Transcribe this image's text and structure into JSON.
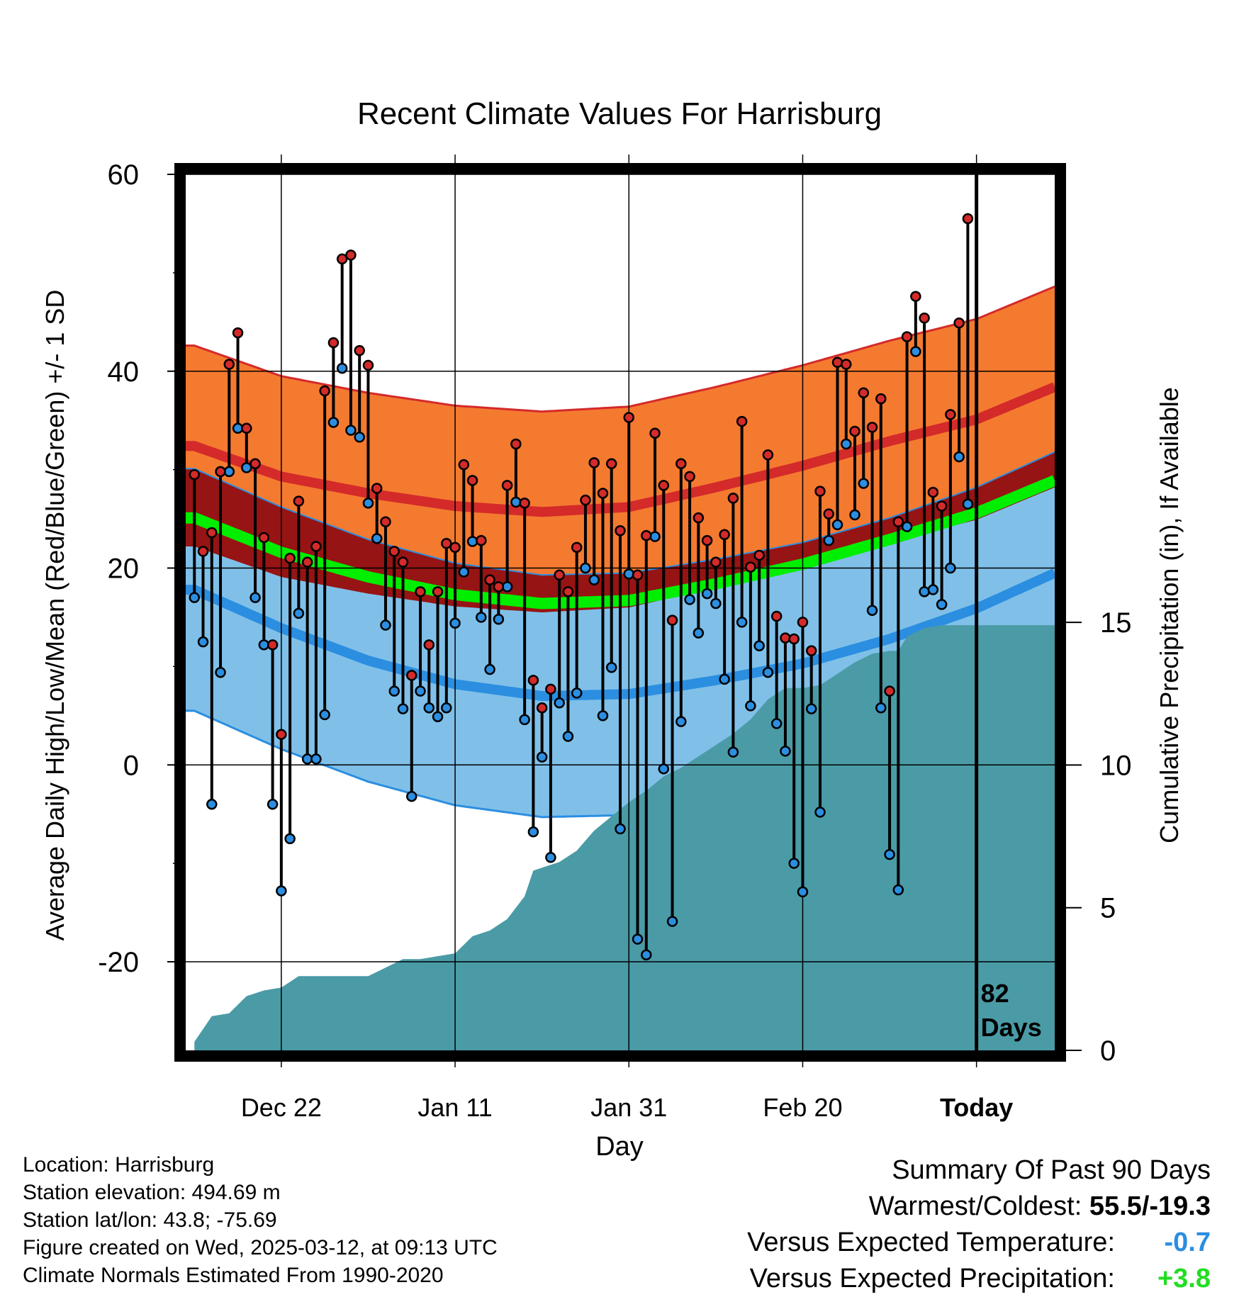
{
  "chart_data": {
    "type": "line",
    "title": "Recent Climate Values For Harrisburg",
    "xlabel": "Day",
    "ylabel": "Average Daily High/Low/Mean (Red/Blue/Green) +/- 1 SD",
    "y2label": "Cumulative Precipitation (in), If Available",
    "ylim": [
      -29,
      60
    ],
    "y2lim": [
      0,
      30.7
    ],
    "xlim": [
      -91,
      9
    ],
    "yticks": [
      -20,
      0,
      20,
      40,
      60
    ],
    "y2ticks": [
      0,
      5,
      10,
      15
    ],
    "xticks": [
      {
        "x": -80,
        "label": "Dec 22"
      },
      {
        "x": -60,
        "label": "Jan 11"
      },
      {
        "x": -40,
        "label": "Jan 31"
      },
      {
        "x": -20,
        "label": "Feb 20"
      },
      {
        "x": 0,
        "label": "Today"
      }
    ],
    "today_x": 0,
    "today_label": "82\nDays",
    "normals": {
      "x": [
        -90,
        -80,
        -70,
        -60,
        -50,
        -40,
        -30,
        -20,
        -10,
        0,
        9
      ],
      "high_mean": [
        32.4,
        29.3,
        27.6,
        26.3,
        25.7,
        26.2,
        28.2,
        30.4,
        32.9,
        35.1,
        38.4
      ],
      "high_sd": 10.2,
      "low_mean": [
        17.8,
        13.9,
        10.6,
        8.2,
        7.0,
        7.2,
        8.6,
        10.3,
        12.8,
        15.9,
        19.5
      ],
      "low_sd": 12.3,
      "mean_mean": [
        25.1,
        21.6,
        19.1,
        17.3,
        16.4,
        16.7,
        18.4,
        20.4,
        22.9,
        25.6,
        28.9
      ]
    },
    "series": [
      {
        "name": "High",
        "color": "#d42a2a",
        "x": [
          -90,
          -89,
          -88,
          -87,
          -86,
          -85,
          -84,
          -83,
          -82,
          -81,
          -80,
          -79,
          -78,
          -77,
          -76,
          -75,
          -74,
          -73,
          -72,
          -71,
          -70,
          -69,
          -68,
          -67,
          -66,
          -65,
          -64,
          -63,
          -62,
          -61,
          -60,
          -59,
          -58,
          -57,
          -56,
          -55,
          -54,
          -53,
          -52,
          -51,
          -50,
          -49,
          -48,
          -47,
          -46,
          -45,
          -44,
          -43,
          -42,
          -41,
          -40,
          -39,
          -38,
          -37,
          -36,
          -35,
          -34,
          -33,
          -32,
          -31,
          -30,
          -29,
          -28,
          -27,
          -26,
          -25,
          -24,
          -23,
          -22,
          -21,
          -20,
          -19,
          -18,
          -17,
          -16,
          -15,
          -14,
          -13,
          -12,
          -11,
          -10,
          -9,
          -8,
          -7,
          -6,
          -5,
          -4,
          -3,
          -2,
          -1
        ],
        "values": [
          29.5,
          21.7,
          23.6,
          29.8,
          40.7,
          43.9,
          34.2,
          30.6,
          23.1,
          12.2,
          3.1,
          21.0,
          26.8,
          20.6,
          22.2,
          38.0,
          42.9,
          51.4,
          51.8,
          42.1,
          40.6,
          28.1,
          24.7,
          21.7,
          20.6,
          9.1,
          17.6,
          12.2,
          17.6,
          22.5,
          22.1,
          30.5,
          28.9,
          22.8,
          18.8,
          18.1,
          28.4,
          32.6,
          26.6,
          8.6,
          5.8,
          7.7,
          19.3,
          17.6,
          22.1,
          26.9,
          30.7,
          27.6,
          30.6,
          23.8,
          35.3,
          19.3,
          23.3,
          33.7,
          28.4,
          14.7,
          30.6,
          29.3,
          25.1,
          22.8,
          20.6,
          23.4,
          27.1,
          34.9,
          20.1,
          21.3,
          31.5,
          15.1,
          12.9,
          12.8,
          14.5,
          11.6,
          27.8,
          25.5,
          40.9,
          40.7,
          33.9,
          37.8,
          34.3,
          37.2,
          7.5,
          24.7,
          43.5,
          47.6,
          45.4,
          27.7,
          26.3,
          35.6,
          44.9,
          55.5
        ]
      },
      {
        "name": "Low",
        "color": "#2b8ee0",
        "x": [
          -90,
          -89,
          -88,
          -87,
          -86,
          -85,
          -84,
          -83,
          -82,
          -81,
          -80,
          -79,
          -78,
          -77,
          -76,
          -75,
          -74,
          -73,
          -72,
          -71,
          -70,
          -69,
          -68,
          -67,
          -66,
          -65,
          -64,
          -63,
          -62,
          -61,
          -60,
          -59,
          -58,
          -57,
          -56,
          -55,
          -54,
          -53,
          -52,
          -51,
          -50,
          -49,
          -48,
          -47,
          -46,
          -45,
          -44,
          -43,
          -42,
          -41,
          -40,
          -39,
          -38,
          -37,
          -36,
          -35,
          -34,
          -33,
          -32,
          -31,
          -30,
          -29,
          -28,
          -27,
          -26,
          -25,
          -24,
          -23,
          -22,
          -21,
          -20,
          -19,
          -18,
          -17,
          -16,
          -15,
          -14,
          -13,
          -12,
          -11,
          -10,
          -9,
          -8,
          -7,
          -6,
          -5,
          -4,
          -3,
          -2,
          -1
        ],
        "values": [
          17.0,
          12.5,
          -4.0,
          9.4,
          29.8,
          34.2,
          30.2,
          17.0,
          12.2,
          -4.0,
          -12.8,
          -7.5,
          15.4,
          0.6,
          0.6,
          5.1,
          34.8,
          40.3,
          34.0,
          33.3,
          26.6,
          23.0,
          14.2,
          7.5,
          5.7,
          -3.2,
          7.5,
          5.8,
          4.9,
          5.8,
          14.4,
          19.6,
          22.7,
          15.0,
          9.7,
          14.8,
          18.1,
          26.7,
          4.6,
          -6.8,
          0.8,
          -9.4,
          6.3,
          2.9,
          7.3,
          20.0,
          18.8,
          5.0,
          9.9,
          -6.5,
          19.4,
          -17.7,
          -19.3,
          23.2,
          -0.4,
          -15.9,
          4.4,
          16.8,
          13.4,
          17.4,
          16.4,
          8.7,
          1.3,
          14.5,
          6.0,
          12.1,
          9.4,
          4.2,
          1.4,
          -10.0,
          -12.9,
          5.7,
          -4.8,
          22.8,
          24.4,
          32.6,
          25.4,
          28.6,
          15.7,
          5.8,
          -9.1,
          -12.7,
          24.2,
          42.0,
          17.6,
          17.8,
          16.3,
          20.0,
          31.3,
          26.5
        ]
      },
      {
        "name": "Cumulative Precipitation",
        "color": "#4a9ba6",
        "x": [
          -90,
          -88,
          -86,
          -84,
          -82,
          -80,
          -78,
          -76,
          -74,
          -72,
          -70,
          -68,
          -66,
          -64,
          -62,
          -60,
          -58,
          -56,
          -54,
          -52,
          -51,
          -50,
          -48,
          -46,
          -44,
          -42,
          -40,
          -38,
          -36,
          -34,
          -32,
          -30,
          -28,
          -26,
          -24,
          -22,
          -20,
          -18,
          -16,
          -14,
          -12,
          -10,
          -9,
          -8,
          -6,
          -4,
          -2,
          0,
          9
        ],
        "values": [
          0.3,
          1.2,
          1.3,
          1.9,
          2.1,
          2.2,
          2.6,
          2.6,
          2.6,
          2.6,
          2.6,
          2.9,
          3.2,
          3.2,
          3.3,
          3.4,
          4.0,
          4.2,
          4.6,
          5.4,
          6.3,
          6.4,
          6.6,
          7.0,
          7.7,
          8.2,
          8.7,
          9.1,
          9.6,
          9.9,
          10.3,
          10.7,
          11.1,
          11.6,
          12.3,
          12.7,
          12.7,
          12.8,
          13.2,
          13.6,
          13.9,
          14.0,
          14.0,
          14.5,
          14.8,
          14.9,
          14.9,
          14.9,
          14.9
        ]
      }
    ]
  },
  "footer": {
    "location": "Location: Harrisburg",
    "elevation": "Station elevation: 494.69 m",
    "latlon": "Station lat/lon: 43.8; -75.69",
    "created": "Figure created on Wed, 2025-03-12, at 09:13 UTC",
    "normals": "Climate Normals Estimated From 1990-2020"
  },
  "summary": {
    "title": "Summary Of Past 90 Days",
    "warm_cold_label": "Warmest/Coldest:",
    "warm_cold_value": "55.5/-19.3",
    "temp_label": "Versus Expected Temperature:",
    "temp_value": "-0.7",
    "temp_color": "#2b8ee0",
    "precip_label": "Versus Expected Precipitation:",
    "precip_value": "+3.8",
    "precip_color": "#22dd22"
  },
  "colors": {
    "high_band": "#f47a30",
    "high_line": "#d42a2a",
    "mean_band": "#961414",
    "mean_line": "#00ee00",
    "low_band": "#80c0e8",
    "low_line": "#2b8ee0",
    "precip": "#4a9ba6"
  }
}
